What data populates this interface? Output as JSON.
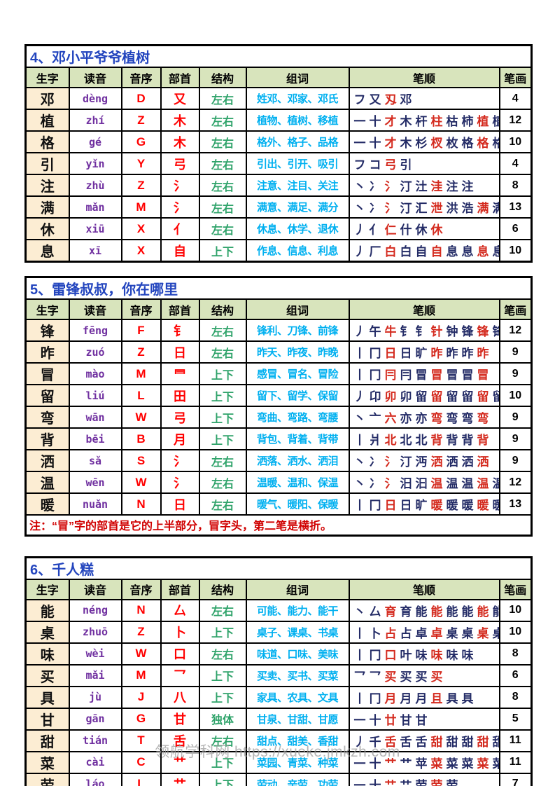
{
  "page": {
    "watermark": "领航学科网 https://xueke.jmkzh.com"
  },
  "colors": {
    "title_blue": "#2345BE",
    "header_green_bg": "#D8E4BC",
    "char_cell_bg": "#FCEDD3",
    "pinyin_purple": "#7030A0",
    "letter_red": "#FF0000",
    "structure_green": "#2FA36A",
    "words_cyan": "#00B0F0",
    "stroke_navy": "#232B66",
    "stroke_red": "#D42A1E",
    "note_red": "#D00000",
    "watermark_gray": "#999999"
  },
  "columns": [
    "生字",
    "读音",
    "音序",
    "部首",
    "结构",
    "组词",
    "笔顺",
    "笔画"
  ],
  "tables": [
    {
      "title": "4、邓小平爷爷植树",
      "note": null,
      "rows": [
        {
          "char": "邓",
          "pinyin": "dèng",
          "initial": "D",
          "radical": "又",
          "structure": "左右",
          "words": "姓邓、邓家、邓氏",
          "strokes": "フ 又 刄 邓",
          "count": "4"
        },
        {
          "char": "植",
          "pinyin": "zhí",
          "initial": "Z",
          "radical": "木",
          "structure": "左右",
          "words": "植物、植树、移植",
          "strokes": "一 十 才 木 杆 柱 枯 柿 植 植 植 植",
          "count": "12"
        },
        {
          "char": "格",
          "pinyin": "gé",
          "initial": "G",
          "radical": "木",
          "structure": "左右",
          "words": "格外、格子、品格",
          "strokes": "一 十 才 木 杉 杈 枚 格 格 格",
          "count": "10"
        },
        {
          "char": "引",
          "pinyin": "yǐn",
          "initial": "Y",
          "radical": "弓",
          "structure": "左右",
          "words": "引出、引开、吸引",
          "strokes": "フ コ 弓 引",
          "count": "4"
        },
        {
          "char": "注",
          "pinyin": "zhù",
          "initial": "Z",
          "radical": "氵",
          "structure": "左右",
          "words": "注意、注目、关注",
          "strokes": "丶 冫 氵 汀 汢 洼 注 注",
          "count": "8"
        },
        {
          "char": "满",
          "pinyin": "mǎn",
          "initial": "M",
          "radical": "氵",
          "structure": "左右",
          "words": "满意、满足、满分",
          "strokes": "丶 冫 氵 汀 汇 泄 洪 浩 满 满 满 满 满",
          "count": "13"
        },
        {
          "char": "休",
          "pinyin": "xiū",
          "initial": "X",
          "radical": "亻",
          "structure": "左右",
          "words": "休息、休学、退休",
          "strokes": "丿 亻 仁 什 休 休",
          "count": "6"
        },
        {
          "char": "息",
          "pinyin": "xī",
          "initial": "X",
          "radical": "自",
          "structure": "上下",
          "words": "作息、信息、利息",
          "strokes": "丿 厂 白 白 自 自 息 息 息 息",
          "count": "10"
        }
      ]
    },
    {
      "title": "5、雷锋叔叔，你在哪里",
      "note": "注：“冒”字的部首是它的上半部分，冒字头，第二笔是横折。",
      "rows": [
        {
          "char": "锋",
          "pinyin": "fēng",
          "initial": "F",
          "radical": "钅",
          "structure": "左右",
          "words": "锋利、刀锋、前锋",
          "strokes": "丿 午 牛 钅 钅 针 钟 锋 锋 锋 锋 锋",
          "count": "12"
        },
        {
          "char": "昨",
          "pinyin": "zuó",
          "initial": "Z",
          "radical": "日",
          "structure": "左右",
          "words": "昨天、昨夜、昨晚",
          "strokes": "丨 冂 日 日 旷 昨 昨 昨 昨",
          "count": "9"
        },
        {
          "char": "冒",
          "pinyin": "mào",
          "initial": "M",
          "radical": "⺜",
          "structure": "上下",
          "words": "感冒、冒名、冒险",
          "strokes": "丨 冂 冃 冃 冒 冒 冒 冒 冒",
          "count": "9"
        },
        {
          "char": "留",
          "pinyin": "liú",
          "initial": "L",
          "radical": "田",
          "structure": "上下",
          "words": "留下、留学、保留",
          "strokes": "丿 卬 卯 卯 留 留 留 留 留 留",
          "count": "10"
        },
        {
          "char": "弯",
          "pinyin": "wān",
          "initial": "W",
          "radical": "弓",
          "structure": "上下",
          "words": "弯曲、弯路、弯腰",
          "strokes": "丶 亠 六 亦 亦 弯 弯 弯 弯",
          "count": "9"
        },
        {
          "char": "背",
          "pinyin": "bēi",
          "initial": "B",
          "radical": "月",
          "structure": "上下",
          "words": "背包、背着、背带",
          "strokes": "丨 爿 北 北 北 背 背 背 背",
          "count": "9"
        },
        {
          "char": "洒",
          "pinyin": "sǎ",
          "initial": "S",
          "radical": "氵",
          "structure": "左右",
          "words": "洒落、洒水、洒泪",
          "strokes": "丶 冫 氵 汀 沔 洒 洒 洒 洒",
          "count": "9"
        },
        {
          "char": "温",
          "pinyin": "wēn",
          "initial": "W",
          "radical": "氵",
          "structure": "左右",
          "words": "温暖、温和、保温",
          "strokes": "丶 冫 氵 汨 汩 温 温 温 温 温 温 温",
          "count": "12"
        },
        {
          "char": "暖",
          "pinyin": "nuǎn",
          "initial": "N",
          "radical": "日",
          "structure": "左右",
          "words": "暖气、暖阳、保暖",
          "strokes": "丨 冂 日 日 旷 暖 暖 暖 暖 暖 暖 暖 暖",
          "count": "13"
        }
      ]
    },
    {
      "title": "6、千人糕",
      "note": null,
      "rows": [
        {
          "char": "能",
          "pinyin": "néng",
          "initial": "N",
          "radical": "厶",
          "structure": "左右",
          "words": "可能、能力、能干",
          "strokes": "丶 厶 育 育 能 能 能 能 能 能",
          "count": "10"
        },
        {
          "char": "桌",
          "pinyin": "zhuō",
          "initial": "Z",
          "radical": "卜",
          "structure": "上下",
          "words": "桌子、课桌、书桌",
          "strokes": "丨 卜 占 占 卓 卓 桌 桌 桌 桌",
          "count": "10"
        },
        {
          "char": "味",
          "pinyin": "wèi",
          "initial": "W",
          "radical": "口",
          "structure": "左右",
          "words": "味道、口味、美味",
          "strokes": "丨 冂 口 叶 味 味 味 味",
          "count": "8"
        },
        {
          "char": "买",
          "pinyin": "mǎi",
          "initial": "M",
          "radical": "乛",
          "structure": "上下",
          "words": "买卖、买书、买菜",
          "strokes": "乛 乛 买 买 买 买",
          "count": "6"
        },
        {
          "char": "具",
          "pinyin": "jù",
          "initial": "J",
          "radical": "八",
          "structure": "上下",
          "words": "家具、农具、文具",
          "strokes": "丨 冂 月 月 月 且 具 具",
          "count": "8"
        },
        {
          "char": "甘",
          "pinyin": "gān",
          "initial": "G",
          "radical": "甘",
          "structure": "独体",
          "words": "甘泉、甘甜、甘愿",
          "strokes": "一 十 廿 甘 甘",
          "count": "5"
        },
        {
          "char": "甜",
          "pinyin": "tián",
          "initial": "T",
          "radical": "舌",
          "structure": "左右",
          "words": "甜点、甜美、香甜",
          "strokes": "丿 千 舌 舌 舌 甜 甜 甜 甜 甜 甜",
          "count": "11"
        },
        {
          "char": "菜",
          "pinyin": "cài",
          "initial": "C",
          "radical": "艹",
          "structure": "上下",
          "words": "菜园、青菜、种菜",
          "strokes": "一 十 艹 艹 苹 菜 菜 菜 菜 菜 菜",
          "count": "11"
        },
        {
          "char": "劳",
          "pinyin": "láo",
          "initial": "L",
          "radical": "艹",
          "structure": "上下",
          "words": "劳动、辛劳、功劳",
          "strokes": "一 十 艹 艹 劳 劳 劳",
          "count": "7"
        }
      ]
    }
  ]
}
